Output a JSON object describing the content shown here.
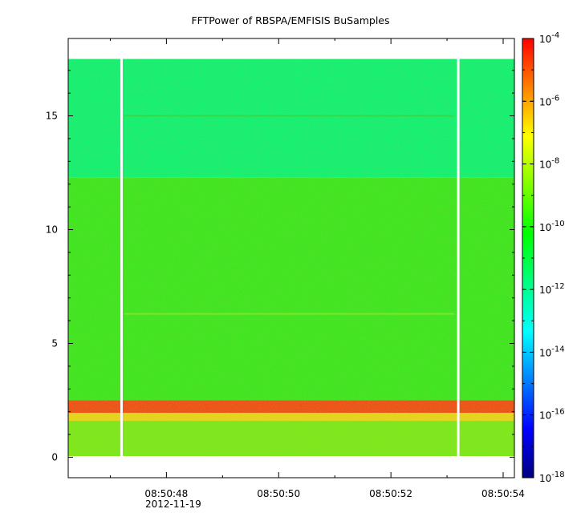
{
  "chart_data": {
    "type": "heatmap",
    "title": "FFTPower of RBSPA/EMFISIS  BuSamples",
    "xlabel": "",
    "ylabel": "",
    "x_tick_labels": [
      "08:50:48",
      "08:50:50",
      "08:50:52",
      "08:50:54"
    ],
    "x_tick_values_s": [
      48,
      50,
      52,
      54
    ],
    "x_date_label": "2012-11-19",
    "xlim_s": [
      46.25,
      54.2
    ],
    "ylim": [
      -0.9,
      18.4
    ],
    "y_ticks": [
      0,
      5,
      10,
      15
    ],
    "y_tick_labels": [
      "0",
      "5",
      "10",
      "15"
    ],
    "data_ymax": 17.5,
    "data_gaps_s": [
      47.2,
      53.2
    ],
    "colorbar": {
      "scale": "log",
      "range": [
        1e-18,
        0.0001
      ],
      "tick_bases": [
        "10",
        "10",
        "10",
        "10",
        "10",
        "10",
        "10",
        "10"
      ],
      "tick_exponents": [
        "-4",
        "-6",
        "-8",
        "-10",
        "-12",
        "-14",
        "-16",
        "-18"
      ],
      "colormap": [
        "#00007f",
        "#0000ff",
        "#0080ff",
        "#00ffff",
        "#00ff80",
        "#00ff00",
        "#80ff00",
        "#ffff00",
        "#ff8000",
        "#ff0000"
      ]
    },
    "bands": [
      {
        "y": [
          0.05,
          1.6
        ],
        "level": "green-yellow",
        "color": "#7ee81c"
      },
      {
        "y": [
          1.6,
          1.95
        ],
        "level": "yellow",
        "color": "#e8d41c"
      },
      {
        "y": [
          1.95,
          2.5
        ],
        "level": "red-orange",
        "color": "#ef5018"
      },
      {
        "y": [
          2.5,
          12.3
        ],
        "level": "green",
        "color": "#3fe521"
      },
      {
        "y": [
          12.3,
          17.5
        ],
        "level": "green-cyan",
        "color": "#14f073"
      }
    ],
    "line_features": [
      {
        "y": 15.0,
        "color": "#3ad63b"
      },
      {
        "y": 6.3,
        "color": "#8fe42a"
      }
    ]
  }
}
